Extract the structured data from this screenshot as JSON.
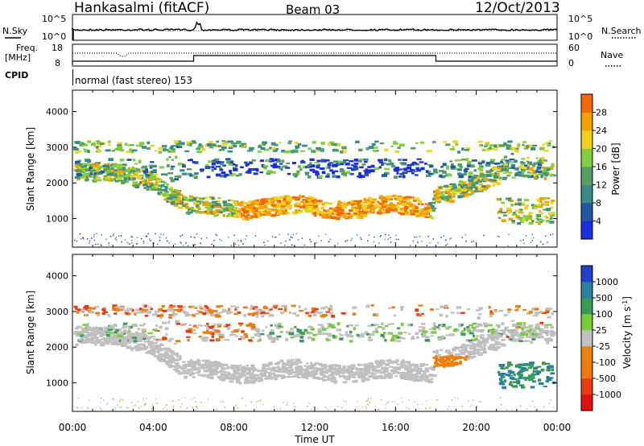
{
  "header": {
    "title": "Hankasalmi (fitACF)",
    "beam": "Beam 03",
    "date": "12/Oct/2013"
  },
  "sky_panel": {
    "left_label": "N.Sky",
    "right_label": "N.Search",
    "left_ticks": [
      "10^5",
      "10^0"
    ],
    "right_ticks": [
      "10^5",
      "10^0"
    ]
  },
  "freq_panel": {
    "left_label_top": "Freq.",
    "left_label_unit": "[MHz]",
    "left_ticks": [
      "18",
      "8"
    ],
    "right_ticks": [
      "60",
      "0"
    ],
    "right_label": "Nave",
    "cpid_label": "CPID",
    "cpid_text": "normal (fast stereo) 153"
  },
  "colors": {
    "ground_scatter": "#c0c0c0",
    "power_scale": [
      "#1a2ee0",
      "#2456a8",
      "#3a8a8a",
      "#55a060",
      "#7fd040",
      "#f0d020",
      "#f5a000",
      "#f06a00",
      "#e82400"
    ],
    "velocity_scale": [
      "#2040c8",
      "#2a7ea0",
      "#3c9a58",
      "#7acd3a",
      "#e8820c",
      "#f07a10",
      "#e83a10",
      "#e01010"
    ]
  },
  "chart_data": [
    {
      "type": "heatmap",
      "title": "",
      "xlabel": "",
      "ylabel": "Slant Range [km]",
      "xlim": [
        "00:00",
        "00:00"
      ],
      "ylim": [
        200,
        4600
      ],
      "y_ticks": [
        "1000",
        "2000",
        "3000",
        "4000"
      ],
      "colorbar": {
        "label": "Power [dB]",
        "range": [
          0,
          32
        ],
        "ticks": [
          "4",
          "8",
          "12",
          "16",
          "20",
          "24",
          "28"
        ]
      }
    },
    {
      "type": "heatmap",
      "title": "",
      "xlabel": "Time UT",
      "ylabel": "Slant Range [km]",
      "x_ticks": [
        "00:00",
        "04:00",
        "08:00",
        "12:00",
        "16:00",
        "20:00",
        "00:00"
      ],
      "xlim": [
        "00:00",
        "00:00"
      ],
      "ylim": [
        200,
        4600
      ],
      "y_ticks": [
        "1000",
        "2000",
        "3000",
        "4000"
      ],
      "colorbar": {
        "label": "Velocity [m s^-1]",
        "ticks": [
          "1000",
          "500",
          "100",
          "25",
          "-25",
          "-100",
          "-500",
          "-1000"
        ]
      }
    }
  ]
}
